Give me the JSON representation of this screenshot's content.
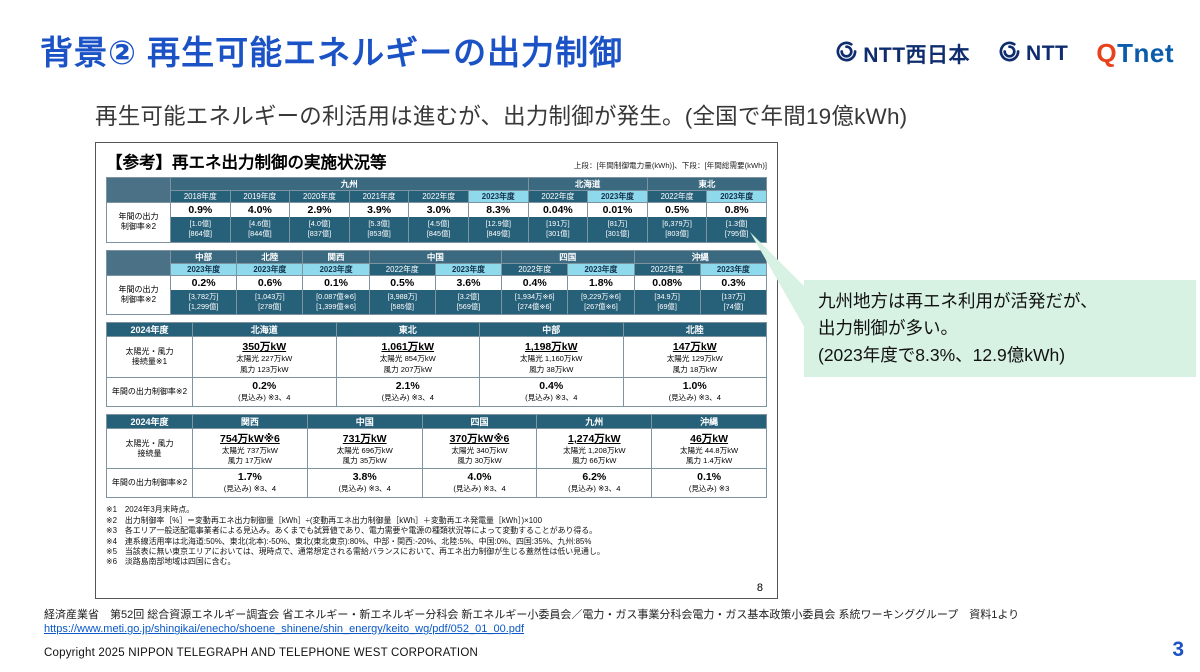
{
  "colors": {
    "accent_blue": "#1b52c6",
    "link_blue": "#0a58c7",
    "table_dark": "#276079",
    "table_region": "#3b6a80",
    "year_hl": "#8ed9ec",
    "callout_green": "#d7f1e3",
    "ntt_navy": "#0f2d6e",
    "qtnet_red": "#e8421c",
    "qtnet_blue": "#0a5cab"
  },
  "slide": {
    "title": "背景② 再生可能エネルギーの出力制御",
    "subtitle": "再生可能エネルギーの利活用は進むが、出力制御が発生。(全国で年間19億kWh)",
    "page_number": "3",
    "copyright": "Copyright 2025 NIPPON TELEGRAPH AND TELEPHONE WEST CORPORATION",
    "source_line": "経済産業省　第52回 総合資源エネルギー調査会 省エネルギー・新エネルギー分科会 新エネルギー小委員会／電力・ガス事業分科会電力・ガス基本政策小委員会 系統ワーキンググループ　資料1より",
    "source_url": "https://www.meti.go.jp/shingikai/enecho/shoene_shinene/shin_energy/keito_wg/pdf/052_01_00.pdf"
  },
  "logos": {
    "ntt_west": "NTT西日本",
    "ntt": "NTT",
    "qtnet_q": "Q",
    "qtnet_rest": "Tnet"
  },
  "callout": {
    "line1": "九州地方は再エネ利用が活発だが、",
    "line2": "出力制御が多い。",
    "line3": "(2023年度で8.3%、12.9億kWh)"
  },
  "figure": {
    "title": "【参考】再エネ出力制御の実施状況等",
    "note": "上段：[年間制御電力量(kWh)]、下段：[年間総需要(kWh)]",
    "page_number": "8",
    "table1": {
      "name": "rate-table-a",
      "label": "年間の出力\n制御率※2",
      "regions": [
        {
          "name": "九州",
          "span": 6
        },
        {
          "name": "北海道",
          "span": 2
        },
        {
          "name": "東北",
          "span": 2
        }
      ],
      "cols": [
        {
          "year": "2018年度",
          "hl": false,
          "pct": "0.9%",
          "v1": "[1.0億]",
          "v2": "[864億]"
        },
        {
          "year": "2019年度",
          "hl": false,
          "pct": "4.0%",
          "v1": "[4.6億]",
          "v2": "[844億]"
        },
        {
          "year": "2020年度",
          "hl": false,
          "pct": "2.9%",
          "v1": "[4.0億]",
          "v2": "[837億]"
        },
        {
          "year": "2021年度",
          "hl": false,
          "pct": "3.9%",
          "v1": "[5.3億]",
          "v2": "[853億]"
        },
        {
          "year": "2022年度",
          "hl": false,
          "pct": "3.0%",
          "v1": "[4.5億]",
          "v2": "[845億]"
        },
        {
          "year": "2023年度",
          "hl": true,
          "pct": "8.3%",
          "v1": "[12.9億]",
          "v2": "[849億]"
        },
        {
          "year": "2022年度",
          "hl": false,
          "pct": "0.04%",
          "v1": "[191万]",
          "v2": "[301億]"
        },
        {
          "year": "2023年度",
          "hl": true,
          "pct": "0.01%",
          "v1": "[81万]",
          "v2": "[301億]"
        },
        {
          "year": "2022年度",
          "hl": false,
          "pct": "0.5%",
          "v1": "[6,379万]",
          "v2": "[803億]"
        },
        {
          "year": "2023年度",
          "hl": true,
          "pct": "0.8%",
          "v1": "[1.3億]",
          "v2": "[795億]"
        }
      ]
    },
    "table2": {
      "name": "rate-table-b",
      "label": "年間の出力\n制御率※2",
      "regions": [
        {
          "name": "中部",
          "span": 1
        },
        {
          "name": "北陸",
          "span": 1
        },
        {
          "name": "関西",
          "span": 1
        },
        {
          "name": "中国",
          "span": 2
        },
        {
          "name": "四国",
          "span": 2
        },
        {
          "name": "沖縄",
          "span": 2
        }
      ],
      "cols": [
        {
          "year": "2023年度",
          "hl": true,
          "pct": "0.2%",
          "v1": "[3,782万]",
          "v2": "[1,299億]"
        },
        {
          "year": "2023年度",
          "hl": true,
          "pct": "0.6%",
          "v1": "[1,043万]",
          "v2": "[278億]"
        },
        {
          "year": "2023年度",
          "hl": true,
          "pct": "0.1%",
          "v1": "[0.087億※6]",
          "v2": "[1,399億※6]"
        },
        {
          "year": "2022年度",
          "hl": false,
          "pct": "0.5%",
          "v1": "[3,988万]",
          "v2": "[585億]"
        },
        {
          "year": "2023年度",
          "hl": true,
          "pct": "3.6%",
          "v1": "[3.2億]",
          "v2": "[569億]"
        },
        {
          "year": "2022年度",
          "hl": false,
          "pct": "0.4%",
          "v1": "[1,934万※6]",
          "v2": "[274億※6]"
        },
        {
          "year": "2023年度",
          "hl": true,
          "pct": "1.8%",
          "v1": "[9,229万※6]",
          "v2": "[267億※6]"
        },
        {
          "year": "2022年度",
          "hl": false,
          "pct": "0.08%",
          "v1": "[34.9万]",
          "v2": "[69億]"
        },
        {
          "year": "2023年度",
          "hl": true,
          "pct": "0.3%",
          "v1": "[137万]",
          "v2": "[74億]"
        }
      ]
    },
    "table3": {
      "name": "forecast-table-a",
      "header": "2024年度",
      "row1_label": "太陽光・風力\n接続量※1",
      "row2_label": "年間の出力制御率※2",
      "cols": [
        {
          "region": "北海道",
          "total": "350万kW",
          "solar": "太陽光 227万kW",
          "wind": "風力 123万kW",
          "pct": "0.2%",
          "note": "(見込み) ※3、4"
        },
        {
          "region": "東北",
          "total": "1,061万kW",
          "solar": "太陽光 854万kW",
          "wind": "風力 207万kW",
          "pct": "2.1%",
          "note": "(見込み) ※3、4"
        },
        {
          "region": "中部",
          "total": "1,198万kW",
          "solar": "太陽光 1,160万kW",
          "wind": "風力 38万kW",
          "pct": "0.4%",
          "note": "(見込み) ※3、4"
        },
        {
          "region": "北陸",
          "total": "147万kW",
          "solar": "太陽光 129万kW",
          "wind": "風力 18万kW",
          "pct": "1.0%",
          "note": "(見込み) ※3、4"
        }
      ]
    },
    "table4": {
      "name": "forecast-table-b",
      "header": "2024年度",
      "row1_label": "太陽光・風力\n接続量",
      "row2_label": "年間の出力制御率※2",
      "cols": [
        {
          "region": "関西",
          "total": "754万kW※6",
          "solar": "太陽光 737万kW",
          "wind": "風力 17万kW",
          "pct": "1.7%",
          "note": "(見込み) ※3、4"
        },
        {
          "region": "中国",
          "total": "731万kW",
          "solar": "太陽光 696万kW",
          "wind": "風力 35万kW",
          "pct": "3.8%",
          "note": "(見込み) ※3、4"
        },
        {
          "region": "四国",
          "total": "370万kW※6",
          "solar": "太陽光 340万kW",
          "wind": "風力 30万kW",
          "pct": "4.0%",
          "note": "(見込み) ※3、4"
        },
        {
          "region": "九州",
          "total": "1,274万kW",
          "solar": "太陽光 1,208万kW",
          "wind": "風力 66万kW",
          "pct": "6.2%",
          "note": "(見込み) ※3、4"
        },
        {
          "region": "沖縄",
          "total": "46万kW",
          "solar": "太陽光 44.8万kW",
          "wind": "風力 1.4万kW",
          "pct": "0.1%",
          "note": "(見込み) ※3"
        }
      ]
    },
    "footnotes": [
      "※1　2024年3月末時点。",
      "※2　出力制御率［%］＝変動再エネ出力制御量［kWh］÷(変動再エネ出力制御量［kWh］＋変動再エネ発電量［kWh］)×100",
      "※3　各エリア一般送配電事業者による見込み。あくまでも試算値であり、電力需要や電源の種類状況等によって変動することがあり得る。",
      "※4　連系線活用率は北海道:50%、東北(北本):-50%、東北(東北東京):80%、中部・関西:-20%、北陸:5%、中国:0%、四国:35%、九州:85%",
      "※5　当該表に無い東京エリアにおいては、現時点で、通常想定される需給バランスにおいて、再エネ出力制御が生じる蓋然性は低い見通し。",
      "※6　淡路島南部地域は四国に含む。"
    ]
  }
}
